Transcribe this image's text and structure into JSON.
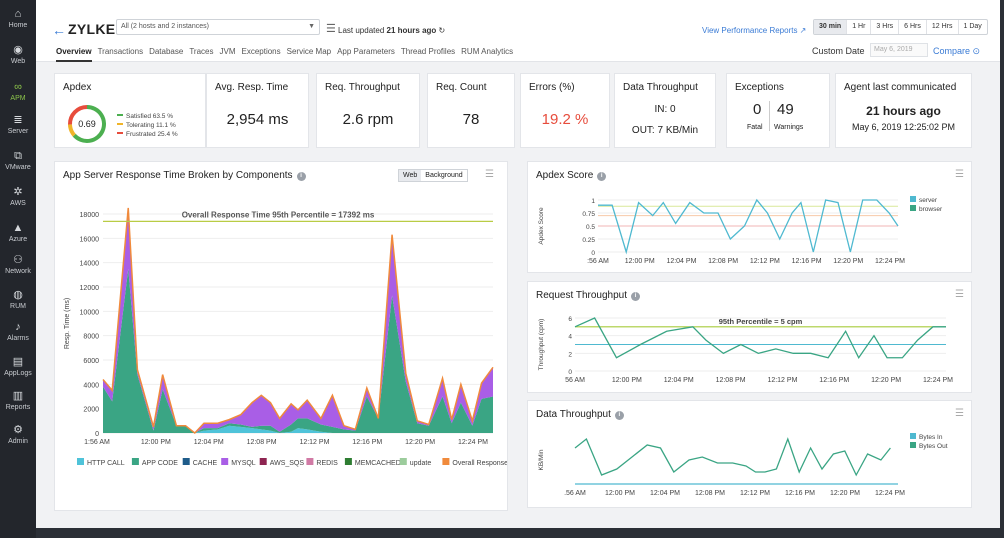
{
  "sidebar": {
    "items": [
      {
        "label": "Home",
        "icon": "home-icon",
        "glyph": "⌂"
      },
      {
        "label": "Web",
        "icon": "globe-icon",
        "glyph": "◉"
      },
      {
        "label": "APM",
        "icon": "apm-icon",
        "glyph": "∞"
      },
      {
        "label": "Server",
        "icon": "server-icon",
        "glyph": "≣"
      },
      {
        "label": "VMware",
        "icon": "vmware-icon",
        "glyph": "⧉"
      },
      {
        "label": "AWS",
        "icon": "aws-icon",
        "glyph": "✲"
      },
      {
        "label": "Azure",
        "icon": "azure-icon",
        "glyph": "▲"
      },
      {
        "label": "Network",
        "icon": "network-icon",
        "glyph": "⚇"
      },
      {
        "label": "RUM",
        "icon": "rum-icon",
        "glyph": "◍"
      },
      {
        "label": "Alarms",
        "icon": "bell-icon",
        "glyph": "♪"
      },
      {
        "label": "AppLogs",
        "icon": "applogs-icon",
        "glyph": "▤"
      },
      {
        "label": "Reports",
        "icon": "reports-icon",
        "glyph": "▥"
      },
      {
        "label": "Admin",
        "icon": "admin-icon",
        "glyph": "⚙"
      }
    ],
    "active_color": "#8bc34a"
  },
  "header": {
    "back_glyph": "←",
    "brand": "ZYLKER",
    "selector_value": "All (2 hosts and 2 instances)",
    "caret": "▼",
    "menu_glyph": "☰",
    "last_updated_label": "Last updated",
    "last_updated_value": "21 hours ago",
    "refresh_glyph": "↻",
    "view_reports": "View Performance Reports ↗",
    "time_ranges": [
      "30 min",
      "1 Hr",
      "3 Hrs",
      "6 Hrs",
      "12 Hrs",
      "1 Day"
    ],
    "tabs": [
      "Overview",
      "Transactions",
      "Database",
      "Traces",
      "JVM",
      "Exceptions",
      "Service Map",
      "App Parameters",
      "Thread Profiles",
      "RUM Analytics"
    ],
    "custom_date_label": "Custom Date",
    "custom_date_placeholder": "May 6, 2019",
    "compare_label": "Compare ⊙"
  },
  "cards": {
    "apdex": {
      "title": "Apdex",
      "score": "0.69",
      "legend": [
        {
          "label": "Satisfied",
          "value": "63.5 %",
          "color": "#4caf50"
        },
        {
          "label": "Tolerating",
          "value": "11.1 %",
          "color": "#f0b429"
        },
        {
          "label": "Frustrated",
          "value": "25.4 %",
          "color": "#e74c3c"
        }
      ]
    },
    "avg_resp": {
      "title": "Avg. Resp. Time",
      "value": "2,954 ms"
    },
    "throughput": {
      "title": "Req. Throughput",
      "value": "2.6 rpm"
    },
    "count": {
      "title": "Req. Count",
      "value": "78"
    },
    "errors": {
      "title": "Errors (%)",
      "value": "19.2 %"
    },
    "data_throughput": {
      "title": "Data Throughput",
      "in": "IN: 0",
      "out": "OUT: 7 KB/Min"
    },
    "exceptions": {
      "title": "Exceptions",
      "fatal_value": "0",
      "fatal_label": "Fatal",
      "warn_value": "49",
      "warn_label": "Warnings"
    },
    "agent": {
      "title": "Agent last communicated",
      "ago": "21 hours ago",
      "date": "May 6, 2019 12:25:02 PM"
    }
  },
  "chart_data": [
    {
      "type": "area",
      "title": "App Server Response Time Broken by Components",
      "toggle": [
        "Web",
        "Background"
      ],
      "ylabel": "Resp. Time (ms)",
      "ylim": [
        0,
        18000
      ],
      "yticks": [
        0,
        2000,
        4000,
        6000,
        8000,
        10000,
        12000,
        14000,
        16000,
        18000
      ],
      "xticks": [
        "1:56 AM",
        "12:00 PM",
        "12:04 PM",
        "12:08 PM",
        "12:12 PM",
        "12:16 PM",
        "12:20 PM",
        "12:24 PM"
      ],
      "x": [
        0.0,
        0.4,
        1.1,
        1.5,
        2.2,
        2.6,
        3.2,
        3.6,
        4.0,
        4.4,
        5.0,
        5.5,
        6.0,
        6.5,
        6.9,
        7.3,
        7.7,
        8.2,
        8.5,
        8.9,
        9.5,
        10.0,
        10.5,
        11.0,
        11.5,
        12.0,
        12.6,
        13.2,
        13.7,
        14.2,
        14.8,
        15.2,
        15.6,
        16.1,
        16.5,
        17.0
      ],
      "series": [
        {
          "name": "HTTP CALL",
          "color": "#4fc3d9",
          "values": [
            0,
            0,
            0,
            0,
            0,
            0,
            0,
            0,
            0,
            200,
            300,
            600,
            500,
            400,
            300,
            200,
            0,
            100,
            400,
            300,
            100,
            0,
            0,
            0,
            0,
            0,
            0,
            0,
            0,
            0,
            0,
            0,
            0,
            0,
            0,
            0
          ]
        },
        {
          "name": "APP CODE",
          "color": "#3aa584",
          "values": [
            3800,
            2600,
            13500,
            4800,
            200,
            3600,
            600,
            600,
            0,
            200,
            100,
            200,
            200,
            100,
            300,
            400,
            100,
            600,
            800,
            900,
            600,
            500,
            300,
            200,
            3000,
            1200,
            11300,
            4200,
            800,
            600,
            3000,
            800,
            2500,
            600,
            2800,
            3000
          ]
        },
        {
          "name": "CACHE",
          "color": "#1f5c8a",
          "values": [
            0,
            0,
            0,
            0,
            0,
            0,
            0,
            0,
            0,
            0,
            0,
            0,
            0,
            0,
            0,
            0,
            0,
            0,
            0,
            0,
            0,
            0,
            0,
            0,
            0,
            0,
            0,
            0,
            0,
            0,
            0,
            0,
            0,
            0,
            0,
            0
          ]
        },
        {
          "name": "MYSQL",
          "color": "#a95ee6",
          "values": [
            600,
            900,
            5000,
            400,
            300,
            1200,
            0,
            0,
            0,
            400,
            400,
            300,
            800,
            2000,
            2500,
            1900,
            1100,
            1700,
            700,
            1500,
            500,
            2600,
            300,
            100,
            700,
            0,
            5000,
            700,
            200,
            100,
            1500,
            300,
            1500,
            400,
            1300,
            2400
          ]
        },
        {
          "name": "AWS_SQS",
          "color": "#8e2451",
          "values": [
            0,
            0,
            0,
            0,
            0,
            0,
            0,
            0,
            0,
            0,
            0,
            0,
            0,
            0,
            0,
            0,
            0,
            0,
            0,
            0,
            0,
            0,
            0,
            0,
            0,
            0,
            0,
            0,
            0,
            0,
            0,
            0,
            0,
            0,
            0,
            0
          ]
        },
        {
          "name": "REDIS",
          "color": "#d17aa5",
          "values": [
            0,
            0,
            0,
            0,
            0,
            0,
            0,
            0,
            0,
            0,
            0,
            0,
            0,
            0,
            0,
            0,
            0,
            0,
            0,
            0,
            0,
            0,
            0,
            0,
            0,
            0,
            0,
            0,
            0,
            0,
            0,
            0,
            0,
            0,
            0,
            0
          ]
        },
        {
          "name": "MEMCACHED",
          "color": "#2e7d32",
          "values": [
            0,
            0,
            0,
            0,
            0,
            0,
            0,
            0,
            0,
            0,
            0,
            0,
            0,
            0,
            0,
            0,
            0,
            0,
            0,
            0,
            0,
            0,
            0,
            0,
            0,
            0,
            0,
            0,
            0,
            0,
            0,
            0,
            0,
            0,
            0,
            0
          ]
        },
        {
          "name": "update",
          "color": "#9ccc9c",
          "values": [
            0,
            0,
            0,
            0,
            0,
            0,
            0,
            0,
            0,
            0,
            0,
            0,
            0,
            0,
            0,
            0,
            0,
            0,
            0,
            0,
            0,
            0,
            0,
            0,
            0,
            0,
            0,
            0,
            0,
            0,
            0,
            0,
            0,
            0,
            0,
            0
          ]
        }
      ],
      "total_series": {
        "name": "Overall Response Time",
        "color": "#f08a3c"
      },
      "reference_line": {
        "value": 17392,
        "label": "Overall Response Time 95th Percentile = 17392 ms",
        "color": "#b9cc45"
      }
    },
    {
      "type": "line",
      "title": "Apdex Score",
      "ylabel": "Apdex Score",
      "ylim": [
        0,
        1
      ],
      "yticks": [
        "0",
        "0.25",
        "0.5",
        "0.75",
        "1"
      ],
      "xticks": [
        ":56 AM",
        "12:00 PM",
        "12:04 PM",
        "12:08 PM",
        "12:12 PM",
        "12:16 PM",
        "12:20 PM",
        "12:24 PM"
      ],
      "thresholds": [
        {
          "value": 0.88,
          "color": "#d9e89a"
        },
        {
          "value": 0.7,
          "color": "#f7c9a8"
        },
        {
          "value": 0.5,
          "color": "#f2b6b6"
        }
      ],
      "series": [
        {
          "name": "server",
          "color": "#4fb9d0",
          "x": [
            0.0,
            0.8,
            1.6,
            2.3,
            3.1,
            3.7,
            4.4,
            5.2,
            6.0,
            6.8,
            7.5,
            8.3,
            9.0,
            9.6,
            10.3,
            11.0,
            11.5,
            12.2,
            12.9,
            13.6,
            14.3,
            15.0,
            15.8,
            16.5,
            17.0
          ],
          "values": [
            0.9,
            0.9,
            0.0,
            0.95,
            0.7,
            0.95,
            0.55,
            0.95,
            0.75,
            0.75,
            0.25,
            0.5,
            1.0,
            0.75,
            0.25,
            0.75,
            0.95,
            0.0,
            1.0,
            0.95,
            0.0,
            1.0,
            1.0,
            0.75,
            0.5
          ]
        },
        {
          "name": "browser",
          "color": "#3aa584",
          "x": [],
          "values": []
        }
      ]
    },
    {
      "type": "line",
      "title": "Request Throughput",
      "ylabel": "Throughput (cpm)",
      "ylim": [
        0,
        6
      ],
      "yticks": [
        "0",
        "2",
        "4",
        "6"
      ],
      "xticks": [
        "56 AM",
        "12:00 PM",
        "12:04 PM",
        "12:08 PM",
        "12:12 PM",
        "12:16 PM",
        "12:20 PM",
        "12:24 PM"
      ],
      "reference_line": {
        "value": 5,
        "label": "95th Percentile = 5 cpm",
        "color": "#a7cc3c"
      },
      "secondary_line": {
        "value": 3,
        "color": "#4fb9d0"
      },
      "series": [
        {
          "name": "Throughput",
          "color": "#3aa584",
          "x": [
            0.0,
            0.9,
            1.9,
            3.0,
            4.2,
            5.4,
            6.0,
            6.8,
            7.6,
            8.4,
            9.2,
            10.0,
            10.8,
            11.6,
            12.4,
            13.0,
            13.7,
            14.3,
            15.0,
            15.7,
            16.4,
            17.0
          ],
          "values": [
            5,
            6,
            1.5,
            3,
            4.5,
            5,
            3.5,
            2,
            3,
            2,
            2.5,
            2,
            2,
            1.5,
            4.5,
            1.5,
            4,
            1.5,
            1.5,
            3.5,
            5,
            5
          ]
        }
      ]
    },
    {
      "type": "line",
      "title": "Data Throughput",
      "ylabel": "KB/Min",
      "ylim": [
        0,
        16
      ],
      "xticks": [
        ".56 AM",
        "12:00 PM",
        "12:04 PM",
        "12:08 PM",
        "12:12 PM",
        "12:16 PM",
        "12:20 PM",
        "12:24 PM"
      ],
      "series": [
        {
          "name": "Bytes In",
          "color": "#4fb9d0",
          "x": [
            0,
            17
          ],
          "values": [
            0,
            0
          ]
        },
        {
          "name": "Bytes Out",
          "color": "#3aa584",
          "x": [
            0.0,
            0.6,
            1.4,
            2.2,
            3.0,
            3.8,
            4.5,
            5.2,
            6.0,
            6.7,
            7.5,
            8.3,
            9.0,
            9.5,
            10.0,
            10.6,
            11.2,
            11.8,
            12.4,
            13.0,
            13.6,
            14.2,
            14.8,
            15.4,
            16.1,
            16.6
          ],
          "values": [
            12,
            15,
            3,
            5,
            9,
            13,
            12,
            4,
            8,
            9,
            7,
            7,
            6,
            4,
            4,
            5,
            15,
            4,
            12,
            5,
            10,
            11,
            3,
            10,
            8,
            12
          ]
        }
      ]
    }
  ]
}
